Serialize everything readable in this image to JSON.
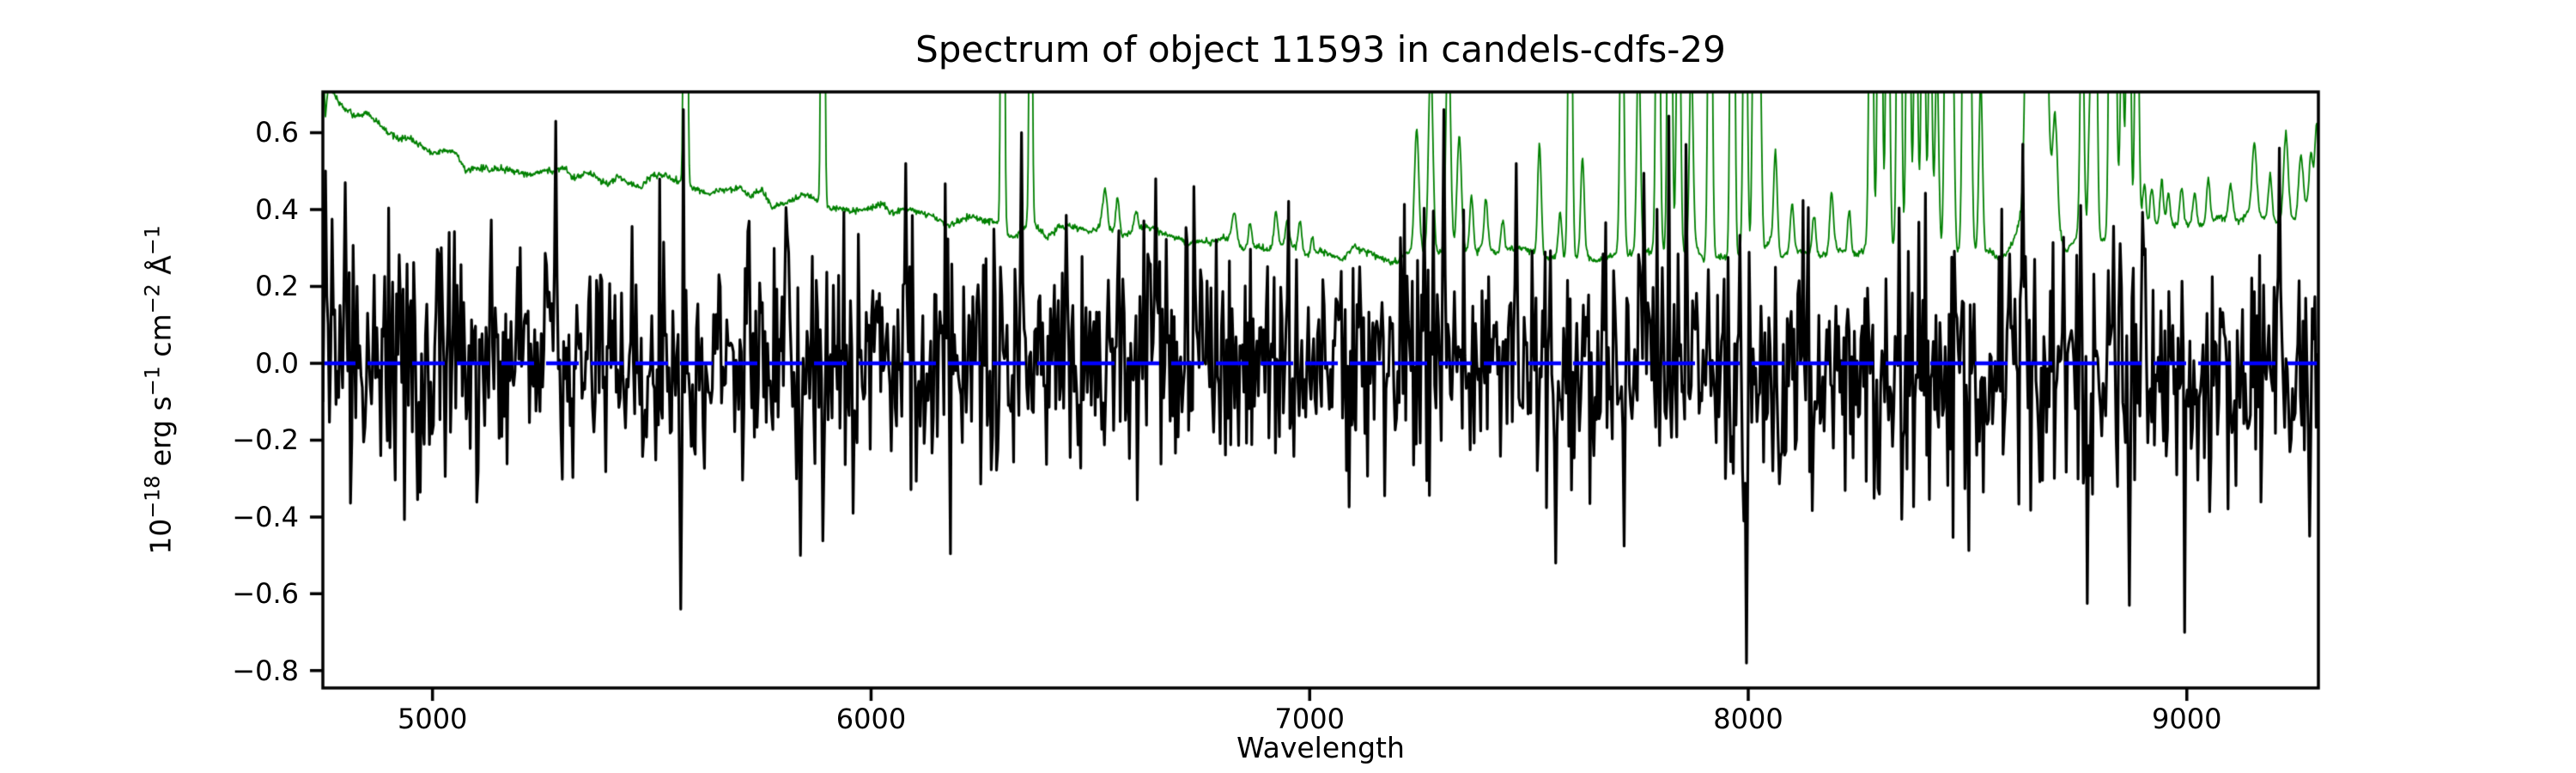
{
  "figure": {
    "title": "Spectrum of object 11593 in candels-cdfs-29",
    "xlabel": "Wavelength",
    "ylabel_plain": "10^-18 erg s^-1 cm^-2 A^-1",
    "ylabel_parts": [
      {
        "text": "10"
      },
      {
        "sup": "−18"
      },
      {
        "text": " erg s"
      },
      {
        "sup": "−1"
      },
      {
        "text": " cm"
      },
      {
        "sup": "−2"
      },
      {
        "text": " Å"
      },
      {
        "sup": "−1"
      }
    ],
    "background_color": "#ffffff",
    "spine_color": "#000000"
  },
  "chart_data": {
    "type": "line",
    "title": "Spectrum of object 11593 in candels-cdfs-29",
    "xlabel": "Wavelength",
    "ylabel": "10⁻¹⁸ erg s⁻¹ cm⁻² Å⁻¹",
    "grid": false,
    "legend": false,
    "xlim": [
      4750,
      9300
    ],
    "ylim": [
      -0.845,
      0.706
    ],
    "xticks": [
      5000,
      6000,
      7000,
      8000,
      9000
    ],
    "xtick_labels": [
      "5000",
      "6000",
      "7000",
      "8000",
      "9000"
    ],
    "ytick_values": [
      0.6,
      0.4,
      0.2,
      0.0,
      -0.2,
      -0.4,
      -0.6,
      -0.8
    ],
    "ytick_labels": [
      "0.6",
      "0.4",
      "0.2",
      "0.0",
      "−0.2",
      "−0.4",
      "−0.6",
      "−0.8"
    ],
    "series": [
      {
        "name": "object-flux",
        "description": "Extracted object spectrum: zero-mean noise, rms ~0.15, heavy tails, larger excursions under bright sky lines",
        "color": "#000000",
        "linewidth": 3.2,
        "style": "solid",
        "seed": 11593,
        "sample_step_angstrom": 3,
        "noise_sigma": 0.15,
        "tail_fraction": 0.08,
        "tail_factor": 2.0,
        "clamp": [
          -0.7,
          0.66
        ],
        "sky_noise_boost": 0.35,
        "extreme_points": [
          [
            4757,
            0.5
          ],
          [
            4800,
            0.47
          ],
          [
            5280,
            0.63
          ],
          [
            5565,
            -0.64
          ],
          [
            5840,
            -0.5
          ],
          [
            6080,
            0.52
          ],
          [
            6344,
            0.6
          ],
          [
            6650,
            0.48
          ],
          [
            7305,
            0.66
          ],
          [
            7470,
            0.52
          ],
          [
            7560,
            -0.52
          ],
          [
            7995,
            -0.78
          ],
          [
            8625,
            0.57
          ],
          [
            8868,
            -0.63
          ],
          [
            9211,
            0.56
          ],
          [
            9280,
            -0.45
          ]
        ]
      },
      {
        "name": "noise-sky-spectrum",
        "description": "1-sigma noise spectrum: smooth declining continuum plus telluric/OH sky emission lines (clipped at top of axes)",
        "color": "#008000",
        "linewidth": 1.8,
        "style": "solid",
        "seed": 29,
        "sample_step_angstrom": 1.5,
        "wiggle_amplitude": 0.013,
        "wiggle_grid_angstrom": 25,
        "continuum_anchors": [
          [
            4750,
            0.8
          ],
          [
            4756,
            0.63
          ],
          [
            4763,
            0.73
          ],
          [
            4780,
            0.69
          ],
          [
            4820,
            0.655
          ],
          [
            4860,
            0.625
          ],
          [
            4900,
            0.6
          ],
          [
            4950,
            0.575
          ],
          [
            5000,
            0.55
          ],
          [
            5060,
            0.53
          ],
          [
            5120,
            0.515
          ],
          [
            5200,
            0.5
          ],
          [
            5300,
            0.49
          ],
          [
            5400,
            0.48
          ],
          [
            5464,
            0.475
          ],
          [
            5550,
            0.465
          ],
          [
            5650,
            0.45
          ],
          [
            5750,
            0.435
          ],
          [
            5850,
            0.42
          ],
          [
            5950,
            0.405
          ],
          [
            6050,
            0.395
          ],
          [
            6150,
            0.385
          ],
          [
            6250,
            0.375
          ],
          [
            6350,
            0.365
          ],
          [
            6450,
            0.355
          ],
          [
            6550,
            0.345
          ],
          [
            6650,
            0.335
          ],
          [
            6750,
            0.32
          ],
          [
            6850,
            0.305
          ],
          [
            6950,
            0.295
          ],
          [
            7050,
            0.29
          ],
          [
            7150,
            0.288
          ],
          [
            7250,
            0.287
          ],
          [
            7350,
            0.285
          ],
          [
            7450,
            0.283
          ],
          [
            7550,
            0.281
          ],
          [
            7650,
            0.28
          ],
          [
            7750,
            0.28
          ],
          [
            7850,
            0.28
          ],
          [
            7950,
            0.282
          ],
          [
            8050,
            0.285
          ],
          [
            8150,
            0.287
          ],
          [
            8250,
            0.29
          ],
          [
            8350,
            0.295
          ],
          [
            8450,
            0.297
          ],
          [
            8550,
            0.3
          ],
          [
            8650,
            0.302
          ],
          [
            8750,
            0.31
          ],
          [
            8850,
            0.33
          ],
          [
            8950,
            0.35
          ],
          [
            9050,
            0.358
          ],
          [
            9150,
            0.362
          ],
          [
            9250,
            0.385
          ],
          [
            9300,
            0.46
          ]
        ],
        "sky_lines": [
          [
            5577,
            3.0,
            3
          ],
          [
            5890,
            2.5,
            3
          ],
          [
            6300,
            2.5,
            3
          ],
          [
            6364,
            1.2,
            3
          ],
          [
            6533,
            0.1,
            5
          ],
          [
            6562,
            0.09,
            4
          ],
          [
            6604,
            0.05,
            4
          ],
          [
            6828,
            0.07,
            5
          ],
          [
            6864,
            0.06,
            4
          ],
          [
            6923,
            0.09,
            4
          ],
          [
            6949,
            0.06,
            4
          ],
          [
            6978,
            0.08,
            4
          ],
          [
            7006,
            0.05,
            4
          ],
          [
            7244,
            0.32,
            5
          ],
          [
            7276,
            0.5,
            5
          ],
          [
            7316,
            0.6,
            5
          ],
          [
            7341,
            0.3,
            5
          ],
          [
            7369,
            0.15,
            4
          ],
          [
            7402,
            0.12,
            4
          ],
          [
            7440,
            0.08,
            4
          ],
          [
            7524,
            0.3,
            4
          ],
          [
            7571,
            0.12,
            4
          ],
          [
            7594,
            1.2,
            4
          ],
          [
            7622,
            0.25,
            4
          ],
          [
            7712,
            0.9,
            4
          ],
          [
            7750,
            0.55,
            4
          ],
          [
            7794,
            1.3,
            4
          ],
          [
            7821,
            1.8,
            4
          ],
          [
            7841,
            1.0,
            4
          ],
          [
            7870,
            0.5,
            4
          ],
          [
            7913,
            1.4,
            4
          ],
          [
            7964,
            1.8,
            4
          ],
          [
            7993,
            1.1,
            4
          ],
          [
            8014,
            0.9,
            4
          ],
          [
            8026,
            0.6,
            4
          ],
          [
            8062,
            0.25,
            4
          ],
          [
            8100,
            0.12,
            4
          ],
          [
            8150,
            0.1,
            4
          ],
          [
            8190,
            0.15,
            4
          ],
          [
            8230,
            0.12,
            4
          ],
          [
            8280,
            1.2,
            4
          ],
          [
            8300,
            1.8,
            4
          ],
          [
            8318,
            1.0,
            4
          ],
          [
            8344,
            1.8,
            4
          ],
          [
            8365,
            1.2,
            4
          ],
          [
            8382,
            0.8,
            4
          ],
          [
            8399,
            1.0,
            4
          ],
          [
            8415,
            0.7,
            4
          ],
          [
            8430,
            0.5,
            4
          ],
          [
            8452,
            1.0,
            4
          ],
          [
            8465,
            0.7,
            4
          ],
          [
            8493,
            1.2,
            4
          ],
          [
            8505,
            0.8,
            4
          ],
          [
            8530,
            0.45,
            4
          ],
          [
            8634,
            0.4,
            4
          ],
          [
            8652,
            0.5,
            4
          ],
          [
            8660,
            0.5,
            22
          ],
          [
            8680,
            0.4,
            4
          ],
          [
            8700,
            0.25,
            5
          ],
          [
            8761,
            0.7,
            4
          ],
          [
            8780,
            0.4,
            4
          ],
          [
            8791,
            1.0,
            4
          ],
          [
            8827,
            1.3,
            4
          ],
          [
            8836,
            0.8,
            4
          ],
          [
            8852,
            0.55,
            4
          ],
          [
            8867,
            1.3,
            4
          ],
          [
            8886,
            0.9,
            4
          ],
          [
            8903,
            0.12,
            4
          ],
          [
            8920,
            0.1,
            4
          ],
          [
            8943,
            0.12,
            4
          ],
          [
            8958,
            0.09,
            4
          ],
          [
            8988,
            0.1,
            4
          ],
          [
            9018,
            0.08,
            4
          ],
          [
            9049,
            0.12,
            4
          ],
          [
            9100,
            0.1,
            5
          ],
          [
            9154,
            0.18,
            5
          ],
          [
            9190,
            0.12,
            4
          ],
          [
            9226,
            0.22,
            5
          ],
          [
            9260,
            0.15,
            5
          ],
          [
            9283,
            0.12,
            4
          ],
          [
            9296,
            0.18,
            4
          ]
        ]
      },
      {
        "name": "zero-reference-line",
        "description": "Horizontal dashed reference line at flux = 0",
        "color": "#0000ff",
        "linewidth": 4.5,
        "style": "dashed",
        "dash_pattern": [
          38,
          14
        ],
        "y": 0.0
      }
    ]
  }
}
